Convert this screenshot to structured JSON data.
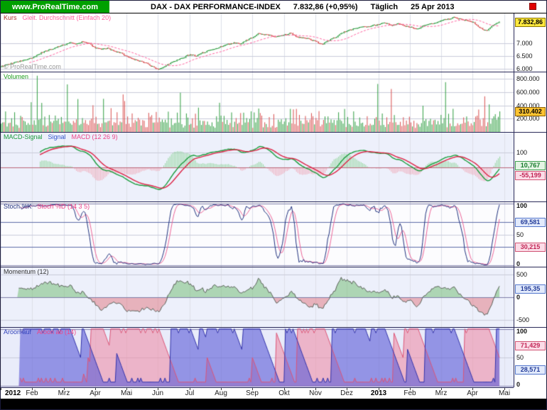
{
  "header": {
    "brand": "www.ProRealTime.com",
    "title": "DAX - DAX PERFORMANCE-INDEX",
    "quote": "7.832,86 (+0,95%)",
    "period": "Täglich",
    "date": "25 Apr 2013"
  },
  "watermark": "© ProRealTime.com",
  "panels": {
    "price": {
      "label_kurs": "Kurs",
      "label_ma": "Gleit. Durchschnitt (Einfach 20)",
      "badge": "7.832,86"
    },
    "volume": {
      "label": "Volumen",
      "badge": "310.402"
    },
    "macd": {
      "label_hist": "MACD-Signal",
      "label_signal": "Signal",
      "label_macd": "MACD (12 26 9)",
      "badge_macd": "10,767",
      "badge_signal": "-55,199"
    },
    "stoch": {
      "label_k": "Stoch %K",
      "label_d": "Stoch %D (14 3 5)",
      "badge_k": "69,581",
      "badge_d": "30,215"
    },
    "momentum": {
      "label": "Momentum (12)",
      "badge": "195,35"
    },
    "aroon": {
      "label_up": "Aroon auf",
      "label_down": "Aroon ab (14)",
      "badge_down": "71,429",
      "badge_up": "28,571"
    }
  },
  "xaxis": {
    "labels": [
      {
        "text": "2012",
        "bold": true
      },
      {
        "text": "Feb"
      },
      {
        "text": "Mrz"
      },
      {
        "text": "Apr"
      },
      {
        "text": "Mai"
      },
      {
        "text": "Jun"
      },
      {
        "text": "Jul"
      },
      {
        "text": "Aug"
      },
      {
        "text": "Sep"
      },
      {
        "text": "Okt"
      },
      {
        "text": "Nov"
      },
      {
        "text": "Dez"
      },
      {
        "text": "2013",
        "bold": true
      },
      {
        "text": "Feb"
      },
      {
        "text": "Mrz"
      },
      {
        "text": "Apr"
      },
      {
        "text": "Mai"
      }
    ]
  },
  "chart_data": {
    "type": "line",
    "title": "DAX - DAX PERFORMANCE-INDEX, Täglich, Jan 2012 - 25 Apr 2013",
    "x_axis": {
      "start": "Jan 2012",
      "end": "Mai 2013",
      "months_span": 16.3,
      "data_span": 15.85,
      "month_count": 17
    },
    "days": 332,
    "seed": 9,
    "noise_amp": 26,
    "last_price": 7832.86,
    "price_controls": [
      6075,
      6140,
      6220,
      6280,
      6340,
      6400,
      6560,
      6680,
      6750,
      6850,
      6920,
      7020,
      6950,
      7050,
      6980,
      6820,
      6740,
      6800,
      6670,
      6620,
      6480,
      6380,
      6280,
      6240,
      6080,
      5980,
      6090,
      6220,
      6320,
      6420,
      6560,
      6480,
      6620,
      6690,
      6750,
      6870,
      6950,
      7010,
      6970,
      7110,
      7240,
      7380,
      7320,
      7280,
      7250,
      7320,
      7380,
      7240,
      7200,
      7150,
      7050,
      6950,
      7100,
      7220,
      7380,
      7480,
      7560,
      7610,
      7640,
      7690,
      7730,
      7780,
      7700,
      7750,
      7680,
      7620,
      7550,
      7680,
      7740,
      7800,
      7880,
      7940,
      8010,
      7920,
      7890,
      7790,
      7600,
      7460,
      7700,
      7832.86
    ],
    "colors": {
      "up": "#2f9e41",
      "down": "#d94f4f",
      "ma": "#ff5f9e",
      "macd_line": "#1a9c3c",
      "signal_line": "#dd2244",
      "hist_pos": "rgba(120,205,130,0.75)",
      "hist_neg": "rgba(242,150,166,0.75)",
      "stoch_k": "#22337f",
      "stoch_d": "#ee6699",
      "mom_line": "#5a6158",
      "mom_pos": "rgba(110,185,110,0.5)",
      "mom_neg": "rgba(225,115,125,0.5)",
      "aroon_up_line": "#3333aa",
      "aroon_up_fill": "rgba(90,90,215,0.6)",
      "aroon_down_line": "#dd5577",
      "aroon_down_fill": "rgba(238,135,160,0.55)",
      "month_grid": "#dddfe9",
      "grid": "#c9cbda",
      "grid_strong": "#7d7da8",
      "zero_macd": "#bb6677",
      "brand_green": "#00a000",
      "badge_yellow": "#ffe93d",
      "badge_orange": "#ffc431"
    },
    "panels": [
      {
        "id": "price",
        "ylim": [
          5880,
          8160
        ],
        "bg": "#ffffff",
        "ma_period": 20,
        "gridlines": [
          {
            "v": 7000,
            "label": "7.000"
          },
          {
            "v": 6500,
            "label": "6.500"
          },
          {
            "v": 6000,
            "label": "6.000"
          }
        ],
        "badges": [
          {
            "text": "7.832,86",
            "v": 7832.86,
            "cls": "badge-yellow"
          }
        ]
      },
      {
        "id": "volume",
        "ylim": [
          0,
          900000
        ],
        "bg": "#ffffff",
        "base": 90000,
        "max": 855000,
        "last": 310402,
        "gridlines": [
          {
            "v": 800000,
            "label": "800.000"
          },
          {
            "v": 600000,
            "label": "600.000"
          },
          {
            "v": 400000,
            "label": "400.000"
          },
          {
            "v": 200000,
            "label": "200.000"
          }
        ],
        "badges": [
          {
            "text": "310.402",
            "v": 310402,
            "cls": "badge-orange"
          }
        ]
      },
      {
        "id": "macd",
        "params": [
          12,
          26,
          9
        ],
        "ylim": [
          -235,
          235
        ],
        "bg": "#edf0fb",
        "hist_gain": 2.2,
        "gridlines": [
          {
            "v": 100,
            "label": "100"
          }
        ],
        "badges": [
          {
            "text": "10,767",
            "v": 10.767,
            "cls": "badge-green"
          },
          {
            "text": "-55,199",
            "v": -55.199,
            "cls": "badge-pink"
          }
        ]
      },
      {
        "id": "stoch",
        "params": [
          14,
          3,
          5
        ],
        "ylim": [
          -2,
          102
        ],
        "bg": "#fcfcfe",
        "guides": [
          70,
          30
        ],
        "gridlines": [
          {
            "v": 100,
            "label": "100",
            "bold": true
          },
          {
            "v": 50,
            "label": "50"
          },
          {
            "v": 0,
            "label": "0",
            "bold": true
          }
        ],
        "badges": [
          {
            "text": "69,581",
            "v": 69.581,
            "cls": "badge-blue"
          },
          {
            "text": "30,215",
            "v": 30.215,
            "cls": "badge-pink"
          }
        ]
      },
      {
        "id": "momentum",
        "params": [
          12
        ],
        "ylim": [
          -660,
          660
        ],
        "bg": "#edf0fb",
        "gridlines": [
          {
            "v": 500,
            "label": "500"
          },
          {
            "v": 0,
            "label": "0",
            "bold": true
          },
          {
            "v": -500,
            "label": "-500"
          }
        ],
        "badges": [
          {
            "text": "195,35",
            "v": 195.35,
            "cls": "badge-blue"
          }
        ]
      },
      {
        "id": "aroon",
        "params": [
          14
        ],
        "ylim": [
          -2,
          102
        ],
        "bg": "#e9ecfa",
        "gridlines": [
          {
            "v": 100,
            "label": "100",
            "bold": true
          },
          {
            "v": 50,
            "label": "50"
          },
          {
            "v": 0,
            "label": "0",
            "bold": true
          }
        ],
        "badges": [
          {
            "text": "71,429",
            "v": 71.429,
            "cls": "badge-pink"
          },
          {
            "text": "28,571",
            "v": 28.571,
            "cls": "badge-blue"
          }
        ]
      }
    ]
  }
}
